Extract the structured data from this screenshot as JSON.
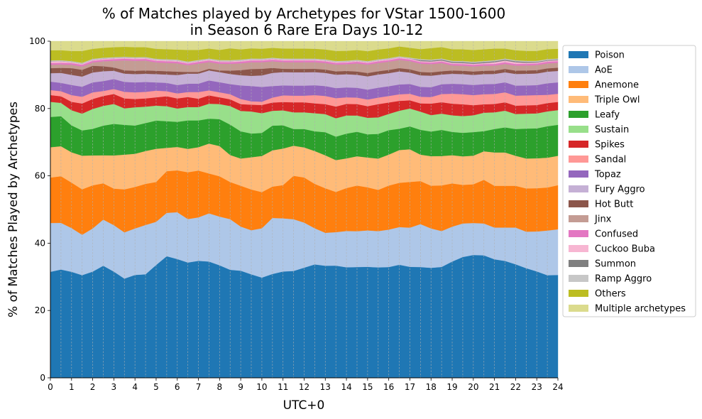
{
  "chart_data": {
    "type": "area",
    "title_line1": "% of Matches played by Archetypes for VStar 1500-1600",
    "title_line2": "in Season 6 Rare Era Days 10-12",
    "xlabel": "UTC+0",
    "ylabel": "% of Matches Played by Archetypes",
    "xlim": [
      0,
      24
    ],
    "ylim": [
      0,
      100
    ],
    "x_ticks": [
      "0",
      "1",
      "2",
      "3",
      "4",
      "5",
      "6",
      "7",
      "8",
      "9",
      "10",
      "11",
      "12",
      "13",
      "14",
      "15",
      "16",
      "17",
      "18",
      "19",
      "20",
      "21",
      "22",
      "23",
      "24"
    ],
    "y_ticks": [
      "0",
      "20",
      "40",
      "60",
      "80",
      "100"
    ],
    "vertical_grid": true,
    "legend_position": "right",
    "x": [
      0,
      0.5,
      1,
      1.5,
      2,
      2.5,
      3,
      3.5,
      4,
      4.5,
      5,
      5.5,
      6,
      6.5,
      7,
      7.5,
      8,
      8.5,
      9,
      9.5,
      10,
      10.5,
      11,
      11.5,
      12,
      12.5,
      13,
      13.5,
      14,
      14.5,
      15,
      15.5,
      16,
      16.5,
      17,
      17.5,
      18,
      18.5,
      19,
      19.5,
      20,
      20.5,
      21,
      21.5,
      22,
      22.5,
      23,
      23.5,
      24
    ],
    "series": [
      {
        "name": "Poison",
        "color": "#1f77b4",
        "values": [
          31.5,
          32.5,
          31.5,
          30.5,
          32,
          34,
          32,
          30,
          31,
          31.5,
          34,
          36.5,
          35.5,
          34.5,
          35,
          35,
          33.5,
          32,
          31.5,
          30.5,
          30.5,
          31.5,
          32,
          32,
          33,
          34.5,
          34,
          33.5,
          33.5,
          34,
          33.5,
          33.5,
          34,
          34.5,
          34,
          33.5,
          33.5,
          34,
          35,
          36,
          36.5,
          36.5,
          35.5,
          35,
          34,
          33,
          32,
          31,
          31.5
        ]
      },
      {
        "name": "AoE",
        "color": "#aec7e8",
        "values": [
          14.5,
          14,
          13,
          12,
          13,
          14,
          14,
          14,
          14,
          15,
          13,
          13,
          14,
          13,
          13,
          14.5,
          14.5,
          15,
          13,
          13,
          15,
          17,
          16,
          15.5,
          13.5,
          11,
          10,
          10,
          11,
          11,
          11,
          11,
          11.5,
          11.5,
          12,
          13,
          12,
          11,
          10.5,
          10,
          9.5,
          9.5,
          9.5,
          10,
          11,
          11,
          12,
          13.5,
          14
        ]
      },
      {
        "name": "Anemone",
        "color": "#ff7f0e",
        "values": [
          13.5,
          14,
          13.5,
          13.5,
          13,
          11,
          11,
          13,
          12.5,
          12.5,
          12,
          12.5,
          12.5,
          14,
          14,
          12,
          12,
          11,
          12,
          12,
          11,
          9.5,
          10,
          13,
          13.5,
          13.5,
          13.5,
          12,
          13,
          14,
          13,
          12.5,
          13.5,
          13.5,
          14,
          13,
          13,
          14,
          13,
          11.5,
          11.5,
          13,
          12.5,
          12.5,
          12.5,
          13,
          13,
          13,
          13.5
        ]
      },
      {
        "name": "Triple Owl",
        "color": "#ffbb78",
        "values": [
          9,
          9,
          9,
          10,
          9,
          8.5,
          10,
          10.5,
          10,
          10,
          10,
          7,
          7,
          7,
          7,
          9,
          9,
          8,
          8,
          9.5,
          11,
          11,
          11,
          9,
          9,
          10,
          10,
          9.5,
          9,
          9,
          9,
          9.5,
          9.5,
          10,
          10,
          8,
          9,
          9,
          8.5,
          8.5,
          8.5,
          8.5,
          10,
          10,
          9,
          9,
          9,
          9,
          9
        ]
      },
      {
        "name": "Leafy",
        "color": "#2ca02c",
        "values": [
          9,
          9,
          8,
          7.5,
          8,
          9,
          9.5,
          9,
          8.5,
          8.5,
          8.5,
          8,
          7.5,
          8.5,
          8,
          7.5,
          8,
          9,
          8,
          7,
          7,
          7.5,
          7,
          5,
          5.5,
          6,
          7,
          7,
          7.5,
          7.5,
          7,
          7.5,
          7.5,
          6.5,
          7,
          7.5,
          7.5,
          8,
          7,
          7,
          7,
          6,
          7,
          7.5,
          8,
          9,
          9,
          9.5,
          9.5
        ]
      },
      {
        "name": "Sustain",
        "color": "#98df8a",
        "values": [
          4.5,
          4,
          4.5,
          5,
          6,
          6,
          6,
          5,
          5.5,
          5,
          4.5,
          4.5,
          4,
          4,
          4,
          4.5,
          4.5,
          5.5,
          6,
          6.5,
          6,
          4.5,
          4.5,
          5,
          5,
          5.5,
          5.5,
          5.5,
          5.5,
          5,
          5,
          5,
          5,
          5.5,
          5.5,
          5.5,
          5,
          5,
          5,
          5,
          5,
          5.5,
          5,
          5,
          4.5,
          4.5,
          4.5,
          4.5,
          4.5
        ]
      },
      {
        "name": "Spikes",
        "color": "#d62728",
        "values": [
          2,
          2,
          2.5,
          3,
          3,
          3,
          3,
          3,
          2.5,
          2.5,
          2.5,
          3,
          3,
          3,
          2.5,
          2.5,
          2,
          2,
          2,
          2,
          2.5,
          2.5,
          2.5,
          3,
          3,
          3,
          3,
          3.5,
          3.5,
          3.5,
          3.5,
          4,
          3.5,
          3,
          2.5,
          2.5,
          3.5,
          3.5,
          3.5,
          3.5,
          3,
          2.5,
          2.5,
          2.5,
          2.5,
          2.5,
          2.5,
          2.5,
          2.5
        ]
      },
      {
        "name": "Sandal",
        "color": "#ff9896",
        "values": [
          1.5,
          1.5,
          2,
          2,
          2,
          1.5,
          1.5,
          2,
          2,
          2,
          2,
          1.5,
          1.5,
          1.5,
          2,
          1.5,
          1.5,
          1.5,
          1.5,
          1,
          1,
          1.5,
          2,
          2,
          2,
          2.5,
          2.5,
          2.5,
          2,
          2,
          2,
          2,
          2,
          2,
          2,
          2,
          2,
          2.5,
          3,
          3,
          3,
          3,
          3,
          3,
          3,
          3,
          3,
          2.5,
          2.5
        ]
      },
      {
        "name": "Topaz",
        "color": "#9467bd",
        "values": [
          2.5,
          2.5,
          3,
          3,
          3,
          3,
          3,
          3,
          3,
          3,
          2.5,
          2.5,
          2.5,
          2.5,
          2.5,
          3,
          3,
          3,
          4,
          4.5,
          4.5,
          3.5,
          3,
          3,
          3,
          3,
          3,
          3,
          3,
          3,
          3,
          3,
          3,
          3,
          3,
          3,
          3,
          3,
          3,
          3,
          3,
          3,
          3,
          3,
          3,
          3,
          3,
          3.5,
          3.5
        ]
      },
      {
        "name": "Fury Aggro",
        "color": "#c5b0d5",
        "values": [
          2.5,
          3,
          3,
          3,
          3,
          3,
          2.5,
          2.5,
          2.5,
          2.5,
          2.5,
          2.5,
          3,
          3,
          3,
          3,
          3,
          3,
          3,
          3,
          3.5,
          4,
          4,
          4,
          4,
          4,
          4,
          4,
          4,
          4,
          4,
          4,
          4,
          4,
          3.5,
          3.5,
          3.5,
          3,
          3,
          3,
          3,
          3,
          3,
          3,
          3.5,
          3.5,
          3.5,
          3.5,
          3.5
        ]
      },
      {
        "name": "Hot Butt",
        "color": "#8c564b",
        "values": [
          1.5,
          1.5,
          2,
          2,
          2,
          1.5,
          1,
          1,
          1,
          1,
          1,
          1,
          1,
          0.5,
          0.5,
          0.5,
          0.5,
          1,
          1.5,
          2,
          2,
          1.5,
          1,
          1,
          1,
          1,
          1,
          1,
          1,
          1,
          1,
          1,
          1,
          1,
          1,
          1,
          1,
          1,
          1,
          1,
          1,
          1,
          1,
          1,
          1,
          1,
          1,
          1,
          1
        ]
      },
      {
        "name": "Jinx",
        "color": "#c49c94",
        "values": [
          1,
          1,
          1,
          1,
          1,
          1.5,
          2,
          3,
          3,
          3,
          2.5,
          2.5,
          2.5,
          2,
          2.5,
          2,
          2,
          2,
          2,
          2,
          2,
          2,
          2,
          2,
          2,
          2,
          2,
          2,
          2,
          2.5,
          2.5,
          2.5,
          2.5,
          2.5,
          2.5,
          2.5,
          2.5,
          2.5,
          1.5,
          1.5,
          1.5,
          1.5,
          1.5,
          1.5,
          1.5,
          1.5,
          1.5,
          1.5,
          1.5
        ]
      },
      {
        "name": "Confused",
        "color": "#e377c2",
        "values": [
          0.5,
          0.5,
          0.5,
          0.5,
          0.5,
          0.5,
          0.5,
          0.5,
          0.5,
          0.5,
          0.5,
          0.5,
          0.5,
          0.5,
          0.5,
          0.5,
          0.5,
          0.5,
          0.5,
          0.5,
          0.5,
          0.5,
          0.5,
          0.5,
          0.5,
          0.5,
          0.5,
          0.5,
          0.5,
          0.5,
          0.5,
          0.5,
          0.5,
          0.5,
          0.5,
          0.5,
          0.5,
          0.5,
          0.5,
          0.5,
          0.5,
          0.5,
          0.5,
          0.5,
          0.5,
          0.5,
          0.5,
          0.5,
          0.5
        ]
      },
      {
        "name": "Cuckoo Buba",
        "color": "#f7b6d2",
        "values": [
          0.5,
          0.5,
          0.3,
          0.3,
          0.3,
          0.3,
          0.3,
          0.3,
          0.3,
          0.3,
          0.3,
          0.3,
          0.3,
          0.3,
          0.3,
          0.3,
          0.3,
          0.3,
          0.3,
          0.3,
          0.3,
          0.3,
          0.3,
          0.3,
          0.3,
          0.3,
          0.3,
          0.3,
          0.3,
          0.3,
          0.3,
          0.3,
          0.3,
          0.3,
          0.3,
          0.3,
          0.3,
          0.3,
          0.3,
          0.3,
          0.3,
          0.3,
          0.5,
          0.5,
          0.5,
          0.3,
          0.3,
          0.3,
          0.3
        ]
      },
      {
        "name": "Summon",
        "color": "#7f7f7f",
        "values": [
          0,
          0,
          0,
          0,
          0,
          0,
          0,
          0,
          0,
          0,
          0,
          0,
          0,
          0,
          0,
          0,
          0,
          0,
          0,
          0,
          0,
          0,
          0,
          0,
          0,
          0,
          0,
          0,
          0,
          0,
          0,
          0,
          0,
          0,
          0,
          0.3,
          0.3,
          0.3,
          0.3,
          0.3,
          0.3,
          0.3,
          0.3,
          0.3,
          0.3,
          0.3,
          0.2,
          0.2,
          0.2
        ]
      },
      {
        "name": "Ramp Aggro",
        "color": "#c7c7c7",
        "values": [
          0.3,
          0.3,
          0.3,
          0.3,
          0.3,
          0.3,
          0.3,
          0.3,
          0.3,
          0.3,
          0.3,
          0.3,
          0.3,
          0.3,
          0.3,
          0.3,
          0.3,
          0.3,
          0.3,
          0.3,
          0.3,
          0.3,
          0.3,
          0.3,
          0.3,
          0.3,
          0.3,
          0.3,
          0.3,
          0.3,
          0.3,
          0.3,
          0.3,
          0.3,
          0.3,
          0.3,
          0.3,
          0.3,
          0.3,
          0.3,
          0.3,
          0.3,
          0.3,
          0.3,
          0.3,
          0.3,
          0.3,
          0.3,
          0.3
        ]
      },
      {
        "name": "Others",
        "color": "#bcbd22",
        "values": [
          3,
          3,
          3,
          3.5,
          3,
          3,
          3,
          3,
          3,
          3,
          3,
          3,
          3,
          3.5,
          3,
          3,
          3,
          3.5,
          3,
          3,
          3,
          3,
          3,
          3,
          3,
          3,
          3,
          3,
          3,
          3,
          3,
          3,
          3,
          3,
          3,
          3,
          3.5,
          3.5,
          3.5,
          3.5,
          3.5,
          3.5,
          3.5,
          3,
          3,
          3,
          3,
          3,
          3
        ]
      },
      {
        "name": "Multiple archetypes",
        "color": "#dbdb8d",
        "values": [
          2.7,
          2.7,
          2.9,
          2.9,
          2.3,
          2.0,
          1.8,
          1.7,
          1.8,
          1.8,
          2.3,
          2.4,
          2.5,
          2.6,
          2.6,
          2.2,
          2.6,
          2.1,
          2.4,
          2.1,
          2.3,
          2.0,
          2.2,
          2.2,
          2.2,
          2.3,
          2.5,
          2.9,
          2.9,
          2.7,
          3.0,
          2.5,
          2.2,
          1.6,
          2.0,
          2.4,
          2.1,
          1.8,
          2.4,
          2.4,
          2.6,
          2.4,
          2.2,
          2.2,
          2.7,
          2.9,
          2.9,
          2.4,
          2.3
        ]
      }
    ]
  }
}
